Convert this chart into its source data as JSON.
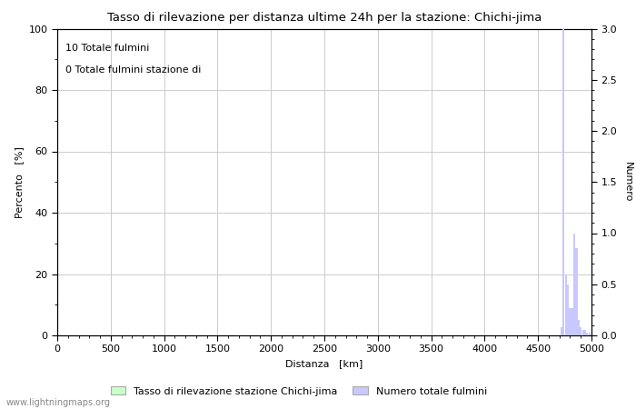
{
  "title": "Tasso di rilevazione per distanza ultime 24h per la stazione: Chichi-jima",
  "xlabel": "Distanza   [km]",
  "ylabel_left": "Percento   [%]",
  "ylabel_right": "Numero",
  "annotation_line1": "10 Totale fulmini",
  "annotation_line2": "0 Totale fulmini stazione di",
  "xlim": [
    0,
    5000
  ],
  "ylim_left": [
    0,
    100
  ],
  "ylim_right": [
    0,
    3.0
  ],
  "xticks": [
    0,
    500,
    1000,
    1500,
    2000,
    2500,
    3000,
    3500,
    4000,
    4500,
    5000
  ],
  "yticks_left": [
    0,
    20,
    40,
    60,
    80,
    100
  ],
  "yticks_right": [
    0.0,
    0.5,
    1.0,
    1.5,
    2.0,
    2.5,
    3.0
  ],
  "legend_label_green": "Tasso di rilevazione stazione Chichi-jima",
  "legend_label_blue": "Numero totale fulmini",
  "watermark": "www.lightningmaps.org",
  "bg_color": "#ffffff",
  "grid_color": "#cccccc",
  "bar_color_blue": "#c8c8ff",
  "bar_color_green": "#c8ffc8",
  "lightning_distances": [
    4720,
    4740,
    4760,
    4780,
    4800,
    4820,
    4840,
    4860,
    4880,
    4900,
    4920,
    4940,
    4960,
    4980
  ],
  "lightning_counts": [
    0.08,
    3.0,
    0.6,
    0.5,
    0.27,
    0.27,
    1.0,
    0.85,
    0.15,
    0.08,
    0.05,
    0.05,
    0.03,
    0.03
  ],
  "pct_distances": [],
  "pct_values": []
}
